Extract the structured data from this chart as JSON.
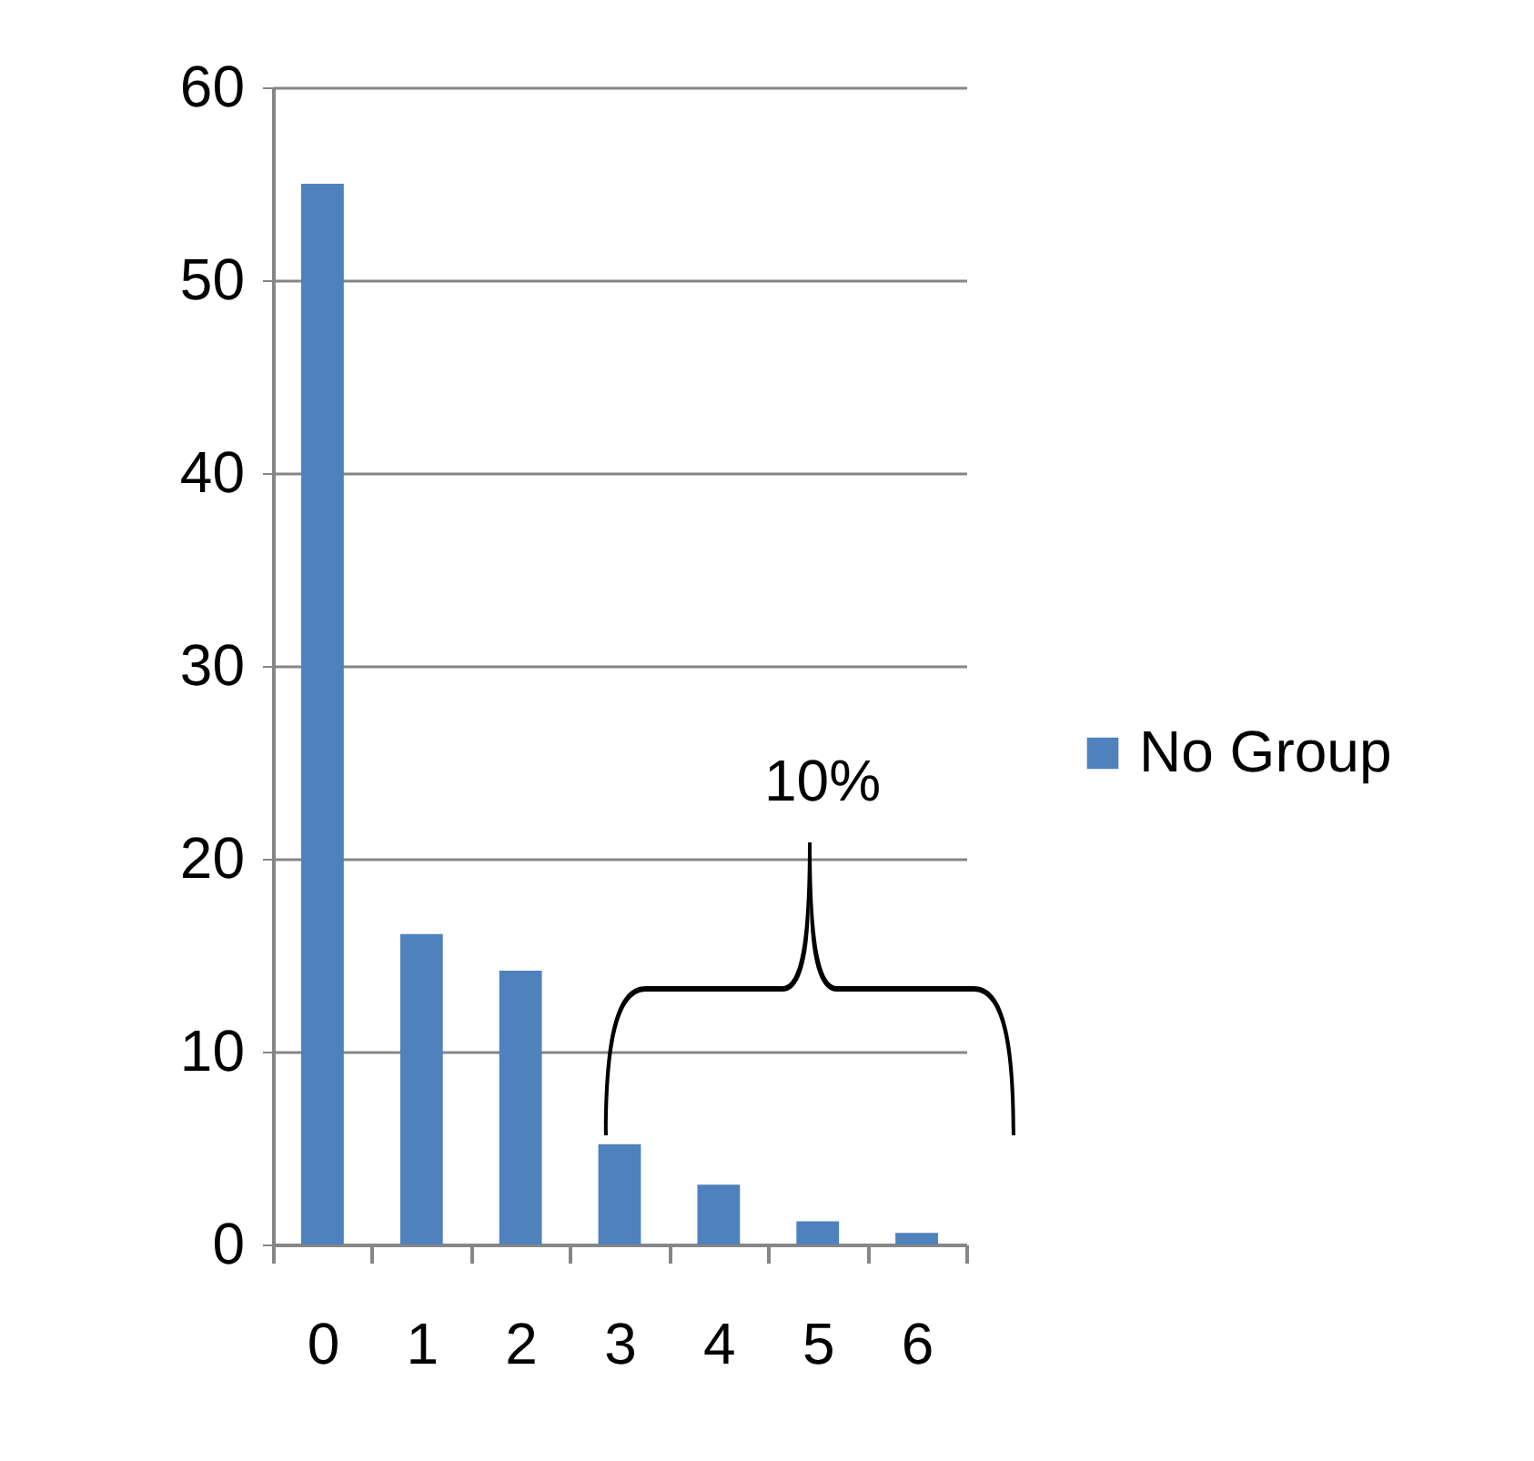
{
  "chart_data": {
    "type": "bar",
    "categories": [
      "0",
      "1",
      "2",
      "3",
      "4",
      "5",
      "6"
    ],
    "series": [
      {
        "name": "No Group",
        "color": "#4f81bd",
        "values": [
          55,
          16.1,
          14.2,
          5.2,
          3.1,
          1.2,
          0.6
        ]
      }
    ],
    "ylim": [
      0,
      60
    ],
    "yticks": [
      0,
      10,
      20,
      30,
      40,
      50,
      60
    ],
    "grid": "y",
    "legend": "right",
    "annotations": [
      "10%"
    ]
  }
}
